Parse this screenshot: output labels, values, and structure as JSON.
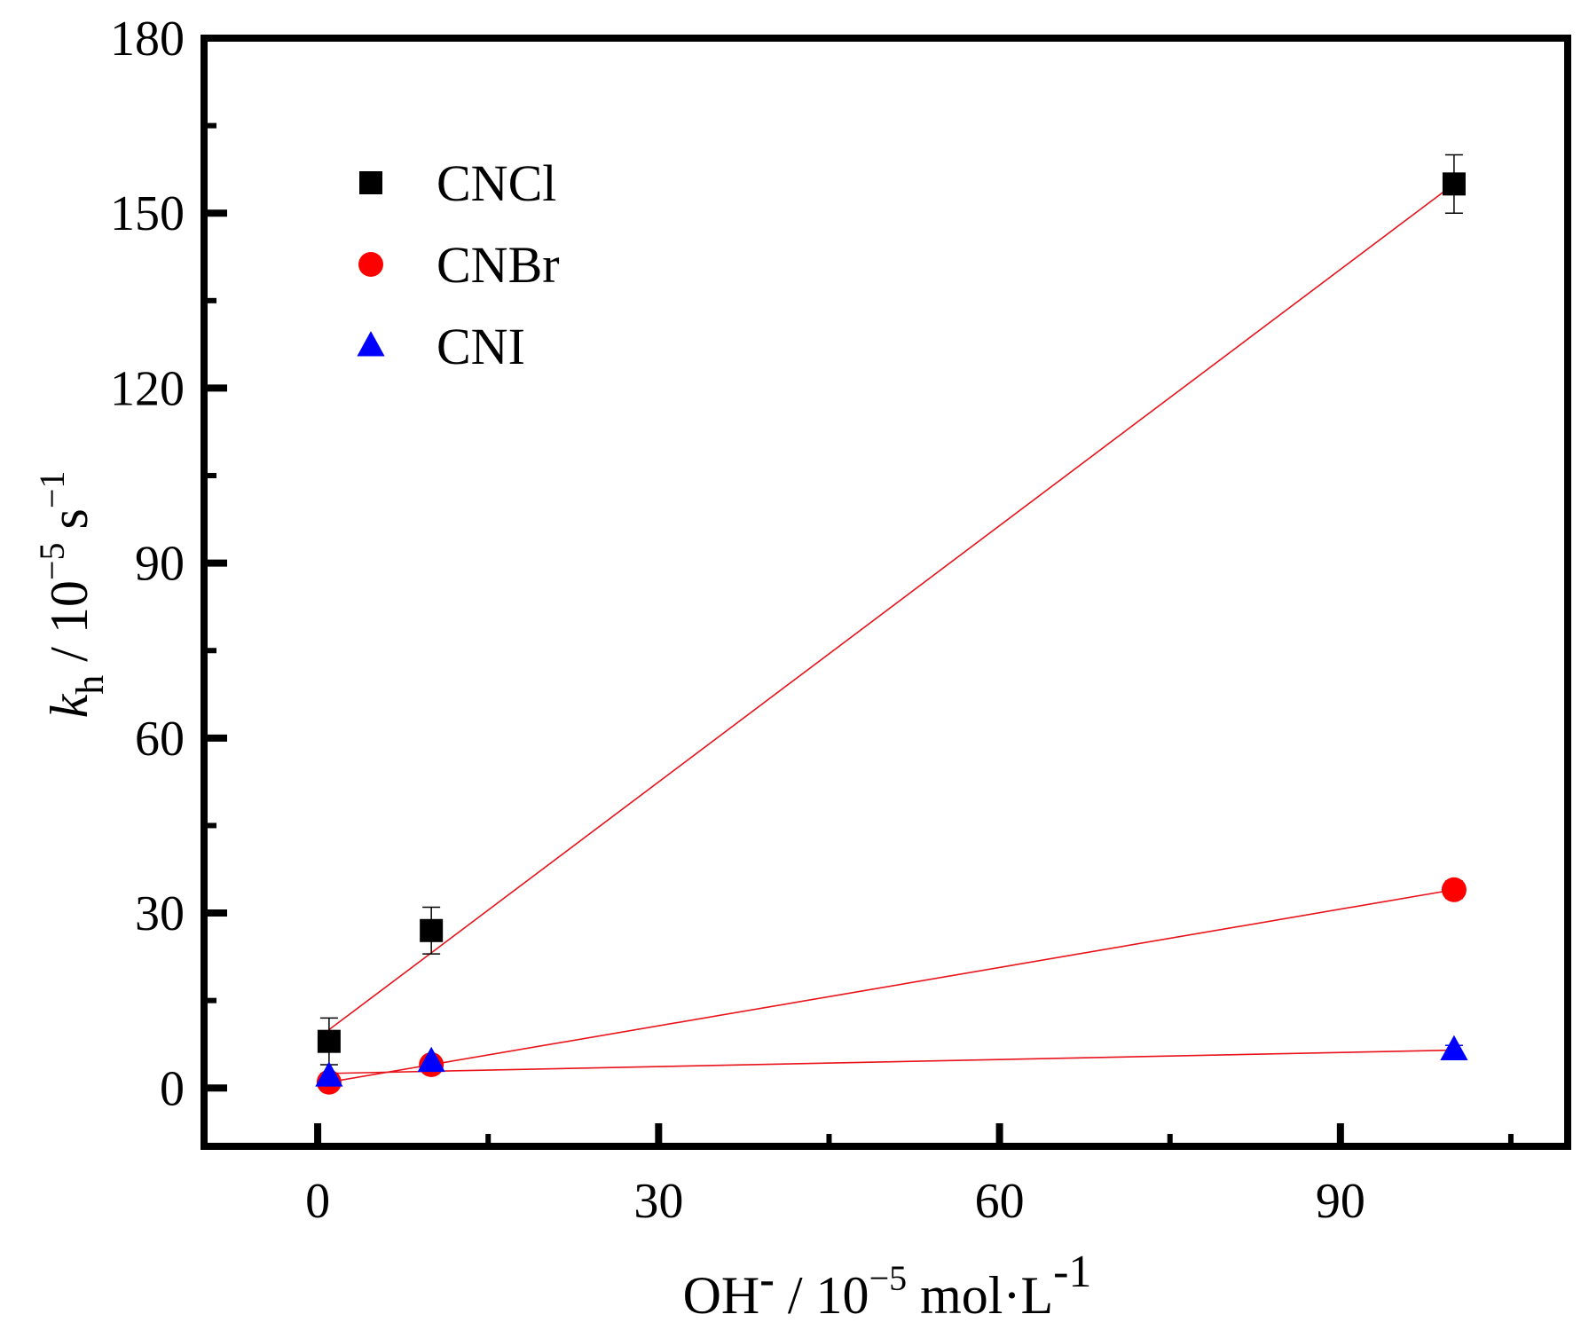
{
  "chart_data": {
    "type": "scatter",
    "title": "",
    "xlabel": {
      "base": "OH",
      "charge": "-",
      "sep": " / 10",
      "exp": "−5",
      "unit": " mol·L",
      "unit_exp": "-1"
    },
    "ylabel": {
      "symbol": "k",
      "subscript": "h",
      "sep": " / 10",
      "exp": "−5",
      "unit": " s",
      "unit_exp": "−1"
    },
    "xlim": [
      -10,
      110
    ],
    "ylim": [
      -10,
      180
    ],
    "x_ticks": [
      0,
      30,
      60,
      90
    ],
    "x_tick_labels": [
      "0",
      "30",
      "60",
      "90"
    ],
    "y_ticks": [
      0,
      30,
      60,
      90,
      120,
      150,
      180
    ],
    "y_tick_labels": [
      "0",
      "30",
      "60",
      "90",
      "120",
      "150",
      "180"
    ],
    "grid": false,
    "legend_position": "top-left",
    "series": [
      {
        "name": "CNCl",
        "color": "#000000",
        "marker": "square",
        "x": [
          1,
          10,
          100
        ],
        "y": [
          8,
          27,
          155
        ],
        "err": [
          4,
          4,
          5
        ],
        "fit": {
          "x": [
            1,
            100
          ],
          "y": [
            10,
            155
          ],
          "color": "#e8131b"
        }
      },
      {
        "name": "CNBr",
        "color": "#ff0000",
        "marker": "circle",
        "x": [
          1,
          10,
          100
        ],
        "y": [
          1,
          4,
          34
        ],
        "err": [
          0.8,
          0.8,
          1.5
        ],
        "fit": {
          "x": [
            1,
            100
          ],
          "y": [
            1,
            34
          ],
          "color": "#e8131b"
        }
      },
      {
        "name": "CNI",
        "color": "#0000ff",
        "marker": "triangle",
        "x": [
          1,
          10,
          100
        ],
        "y": [
          2,
          4.5,
          6.5
        ],
        "err": [
          0.5,
          0.5,
          0.8
        ],
        "fit": {
          "x": [
            1,
            100
          ],
          "y": [
            2.5,
            6.5
          ],
          "color": "#e8131b"
        }
      }
    ]
  }
}
